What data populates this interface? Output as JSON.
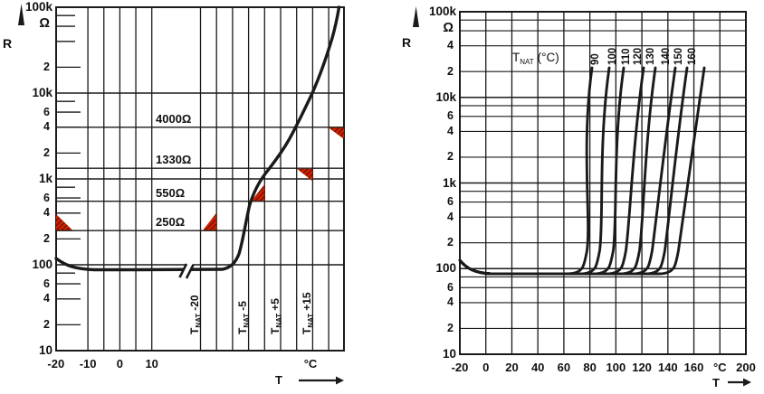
{
  "colors": {
    "ink": "#1a1a1a",
    "limit_red": "#cc2100",
    "hatch_dark": "#3d0800",
    "background": "#ffffff"
  },
  "left_chart": {
    "y_axis": {
      "quantity": "R",
      "unit": "Ω",
      "decades": [
        {
          "label": "100k",
          "value": 100000
        },
        {
          "label": "10k",
          "value": 10000
        },
        {
          "label": "1k",
          "value": 1000
        },
        {
          "label": "100",
          "value": 100
        },
        {
          "label": "10",
          "value": 10
        }
      ],
      "minor_labels": [
        {
          "label": "2",
          "value": 20000
        },
        {
          "label": "6",
          "value": 6000
        },
        {
          "label": "4",
          "value": 4000
        },
        {
          "label": "2",
          "value": 2000
        },
        {
          "label": "6",
          "value": 600
        },
        {
          "label": "4",
          "value": 400
        },
        {
          "label": "2",
          "value": 200
        },
        {
          "label": "6",
          "value": 60
        },
        {
          "label": "4",
          "value": 40
        },
        {
          "label": "2",
          "value": 20
        }
      ]
    },
    "x_axis": {
      "quantity": "T",
      "unit": "°C",
      "ticks": [
        {
          "label": "-20",
          "t": -20
        },
        {
          "label": "-10",
          "t": -10
        },
        {
          "label": "0",
          "t": 0
        },
        {
          "label": "10",
          "t": 10
        }
      ]
    },
    "annotations": [
      {
        "label": "4000Ω",
        "value": 4000
      },
      {
        "label": "1330Ω",
        "value": 1330
      },
      {
        "label": "550Ω",
        "value": 550
      },
      {
        "label": "250Ω",
        "value": 250
      }
    ],
    "tnat_markers": [
      {
        "base": "T",
        "sub": "NAT",
        "offset": "-20",
        "k": -20
      },
      {
        "base": "T",
        "sub": "NAT",
        "offset": "-5",
        "k": -5
      },
      {
        "base": "T",
        "sub": "NAT",
        "offset": "+5",
        "k": 5
      },
      {
        "base": "T",
        "sub": "NAT",
        "offset": "+15",
        "k": 15
      }
    ],
    "limit_wedges": [
      {
        "R_ohm": 250,
        "at": "left edge, above line"
      },
      {
        "R_ohm": 250,
        "at": "T_NAT-20, above line"
      },
      {
        "R_ohm": 550,
        "at": "T_NAT-5, above line"
      },
      {
        "R_ohm": 1330,
        "at": "T_NAT+5, below line"
      },
      {
        "R_ohm": 4000,
        "at": "T_NAT+15, below line"
      }
    ]
  },
  "right_chart": {
    "y_axis": {
      "quantity": "R",
      "unit": "Ω",
      "decades": [
        {
          "label": "100k",
          "value": 100000
        },
        {
          "label": "10k",
          "value": 10000
        },
        {
          "label": "1k",
          "value": 1000
        },
        {
          "label": "100",
          "value": 100
        },
        {
          "label": "10",
          "value": 10
        }
      ],
      "minor_labels": [
        {
          "label": "4",
          "value": 40000
        },
        {
          "label": "2",
          "value": 20000
        },
        {
          "label": "6",
          "value": 6000
        },
        {
          "label": "4",
          "value": 4000
        },
        {
          "label": "2",
          "value": 2000
        },
        {
          "label": "6",
          "value": 600
        },
        {
          "label": "4",
          "value": 400
        },
        {
          "label": "2",
          "value": 200
        },
        {
          "label": "6",
          "value": 60
        },
        {
          "label": "4",
          "value": 40
        },
        {
          "label": "2",
          "value": 20
        }
      ]
    },
    "x_axis": {
      "quantity": "T",
      "ticks": [
        {
          "label": "-20",
          "t": -20
        },
        {
          "label": "0",
          "t": 0
        },
        {
          "label": "20",
          "t": 20
        },
        {
          "label": "40",
          "t": 40
        },
        {
          "label": "60",
          "t": 60
        },
        {
          "label": "80",
          "t": 80
        },
        {
          "label": "100",
          "t": 100
        },
        {
          "label": "120",
          "t": 120
        },
        {
          "label": "140",
          "t": 140
        },
        {
          "label": "160",
          "t": 160
        },
        {
          "label": "°C",
          "t": 180
        },
        {
          "label": "200",
          "t": 200
        }
      ]
    },
    "legend": {
      "base": "T",
      "sub": "NAT",
      "rest": "(°C)"
    },
    "curve_labels": [
      {
        "label": "90",
        "t_nat": 90
      },
      {
        "label": "100",
        "t_nat": 100
      },
      {
        "label": "110",
        "t_nat": 110
      },
      {
        "label": "120",
        "t_nat": 120
      },
      {
        "label": "130",
        "t_nat": 130
      },
      {
        "label": "140",
        "t_nat": 140
      },
      {
        "label": "150",
        "t_nat": 150
      },
      {
        "label": "160",
        "t_nat": 160
      }
    ]
  },
  "chart_data": [
    {
      "type": "line",
      "title": "",
      "xlabel": "T (°C)",
      "ylabel": "R (Ω)",
      "x_scale": "linear with axis break",
      "y_scale": "log",
      "ylim": [
        10,
        100000
      ],
      "x_ticks_absolute_C": [
        -20,
        -10,
        0,
        10
      ],
      "x_axis_break": "between +10 °C and T_NAT-25 K; right section graduated in K relative to T_NAT every 5 K",
      "x_gridlines_relative_K": [
        -25,
        -20,
        -15,
        -10,
        -5,
        0,
        5,
        10,
        15,
        20
      ],
      "reference_lines_ohm": [
        250,
        550,
        1330,
        4000
      ],
      "reference_points": [
        {
          "R_ohm": 250,
          "T": "T_NAT - 20 K",
          "limit": "max"
        },
        {
          "R_ohm": 550,
          "T": "T_NAT - 5 K",
          "limit": "max"
        },
        {
          "R_ohm": 1330,
          "T": "T_NAT + 5 K",
          "limit": "min"
        },
        {
          "R_ohm": 4000,
          "T": "T_NAT + 15 K",
          "limit": "min"
        }
      ],
      "curve_absolute_C": [
        [
          -20,
          120
        ],
        [
          -15,
          95
        ],
        [
          -10,
          88
        ],
        [
          0,
          86
        ],
        [
          10,
          86
        ]
      ],
      "curve_relative_K": [
        [
          -25,
          86
        ],
        [
          -18,
          88
        ],
        [
          -14,
          130
        ],
        [
          -12,
          250
        ],
        [
          -9,
          550
        ],
        [
          -6,
          1000
        ],
        [
          -4,
          1330
        ],
        [
          0,
          2400
        ],
        [
          5,
          4300
        ],
        [
          9,
          10000
        ],
        [
          13,
          30000
        ],
        [
          17,
          80000
        ],
        [
          18.5,
          100000
        ]
      ],
      "grid": "log decade grid plus reference lines at 250/550/1330/4000 Ω"
    },
    {
      "type": "line",
      "title": "",
      "xlabel": "T (°C)",
      "ylabel": "R (Ω)",
      "x_scale": "linear",
      "y_scale": "log",
      "xlim": [
        -20,
        200
      ],
      "ylim": [
        10,
        100000
      ],
      "x_ticks": [
        -20,
        0,
        20,
        40,
        60,
        80,
        100,
        120,
        140,
        160,
        180,
        200
      ],
      "legend": "T_NAT (°C)",
      "legend_position": "top center",
      "grid": "full log grid, minor lines at 2/4/6/8 per decade",
      "flat_region_ohm": 90,
      "series": [
        {
          "name": "T_NAT = 90 °C",
          "t_nat": 90
        },
        {
          "name": "T_NAT = 100 °C",
          "t_nat": 100
        },
        {
          "name": "T_NAT = 110 °C",
          "t_nat": 110
        },
        {
          "name": "T_NAT = 120 °C",
          "t_nat": 120
        },
        {
          "name": "T_NAT = 130 °C",
          "t_nat": 130
        },
        {
          "name": "T_NAT = 140 °C",
          "t_nat": 140
        },
        {
          "name": "T_NAT = 150 °C",
          "t_nat": 150
        },
        {
          "name": "T_NAT = 160 °C",
          "t_nat": 160
        }
      ],
      "common_shape_T_minus_tnat_K": [
        [
          -110,
          125
        ],
        [
          -90,
          95
        ],
        [
          -50,
          88
        ],
        [
          -20,
          90
        ],
        [
          -13,
          100
        ],
        [
          -10,
          180
        ],
        [
          -8,
          400
        ],
        [
          -6,
          1200
        ],
        [
          -4,
          4000
        ],
        [
          -2,
          10000
        ],
        [
          0,
          20000
        ],
        [
          1,
          25000
        ]
      ]
    }
  ]
}
